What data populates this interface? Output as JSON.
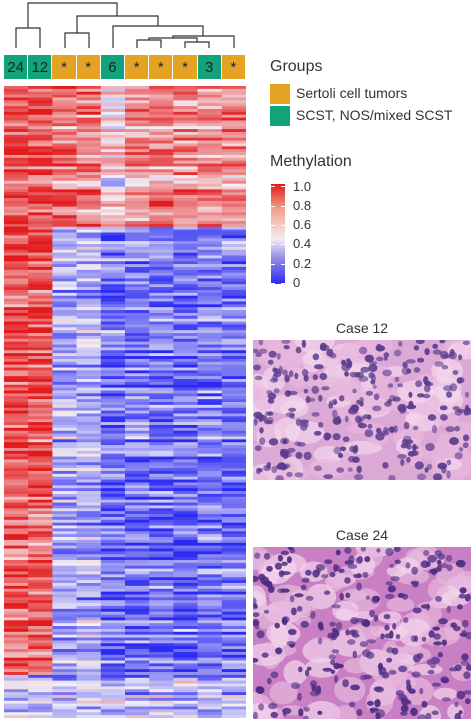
{
  "column_labels": [
    "24",
    "12",
    "*",
    "*",
    "6",
    "*",
    "*",
    "*",
    "3",
    "*"
  ],
  "column_groups": [
    "scst",
    "scst",
    "sertoli",
    "sertoli",
    "scst",
    "sertoli",
    "sertoli",
    "sertoli",
    "scst",
    "sertoli"
  ],
  "legend": {
    "groups_title": "Groups",
    "groups": [
      {
        "key": "sertoli",
        "label": "Sertoli cell tumors",
        "color": "#e5a324"
      },
      {
        "key": "scst",
        "label": "SCST, NOS/mixed SCST",
        "color": "#12a37a"
      }
    ],
    "methylation_title": "Methylation",
    "methylation_ticks": [
      "1.0",
      "0.8",
      "0.6",
      "0.4",
      "0.2",
      "0"
    ]
  },
  "colors": {
    "high": "#e31a1c",
    "mid": "#f4f0f4",
    "low": "#2a2af2"
  },
  "panels": [
    {
      "title": "Case 12"
    },
    {
      "title": "Case 24"
    }
  ]
}
